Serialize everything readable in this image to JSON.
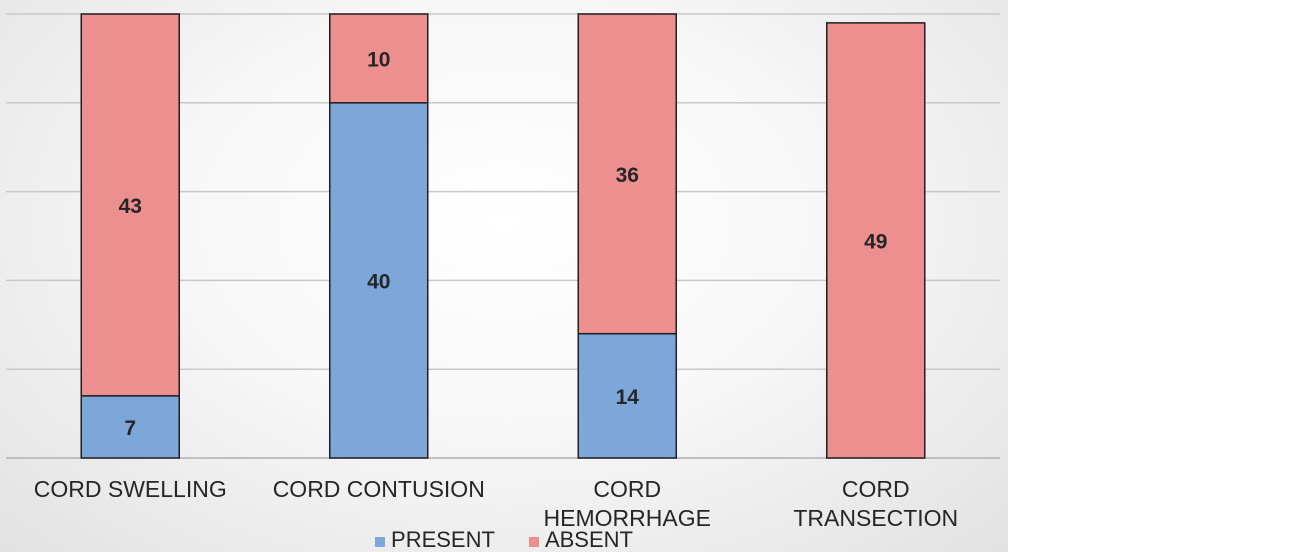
{
  "chart_data": {
    "type": "bar",
    "stacked": true,
    "orientation": "vertical",
    "categories": [
      [
        "CORD SWELLING"
      ],
      [
        "CORD CONTUSION"
      ],
      [
        "CORD",
        "HEMORRHAGE"
      ],
      [
        "CORD",
        "TRANSECTION"
      ]
    ],
    "series": [
      {
        "name": "PRESENT",
        "color": "#7da7d9",
        "values": [
          7,
          40,
          14,
          0
        ],
        "labels": [
          "7",
          "40",
          "14",
          ""
        ]
      },
      {
        "name": "ABSENT",
        "color": "#ed8f8f",
        "values": [
          43,
          10,
          36,
          49
        ],
        "labels": [
          "43",
          "10",
          "36",
          "49"
        ]
      }
    ],
    "ylim": [
      0,
      50
    ],
    "gridlines": [
      10,
      20,
      30,
      40,
      50
    ],
    "grid": true,
    "legend_position": "bottom"
  }
}
